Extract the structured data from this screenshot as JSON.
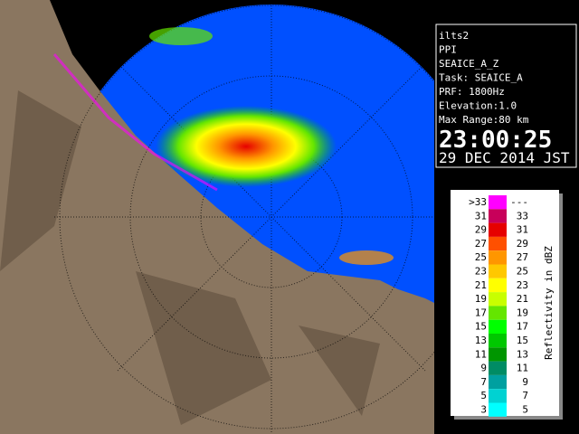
{
  "info": {
    "lines": [
      "ilts2",
      "PPI",
      "SEAICE_A_Z",
      "Task: SEAICE_A",
      "PRF: 1800Hz",
      "Elevation:1.0",
      "Max Range:80 km"
    ],
    "time": "23:00:25",
    "date": "29 DEC 2014 JST"
  },
  "legend": {
    "title": "Reflectivity in dBZ",
    "rows": [
      {
        "low": ">33",
        "high": "---",
        "color": "#ff00ff"
      },
      {
        "low": "31",
        "high": "33",
        "color": "#c8005a"
      },
      {
        "low": "29",
        "high": "31",
        "color": "#e60000"
      },
      {
        "low": "27",
        "high": "29",
        "color": "#ff5000"
      },
      {
        "low": "25",
        "high": "27",
        "color": "#ff9600"
      },
      {
        "low": "23",
        "high": "25",
        "color": "#ffc800"
      },
      {
        "low": "21",
        "high": "23",
        "color": "#ffff00"
      },
      {
        "low": "19",
        "high": "21",
        "color": "#c8ff00"
      },
      {
        "low": "17",
        "high": "19",
        "color": "#64e600"
      },
      {
        "low": "15",
        "high": "17",
        "color": "#00ff00"
      },
      {
        "low": "13",
        "high": "15",
        "color": "#00c800"
      },
      {
        "low": "11",
        "high": "13",
        "color": "#009600"
      },
      {
        "low": "9",
        "high": "11",
        "color": "#008c64"
      },
      {
        "low": "7",
        "high": "9",
        "color": "#00a0a0"
      },
      {
        "low": "5",
        "high": "7",
        "color": "#00d2d2"
      },
      {
        "low": "3",
        "high": "5",
        "color": "#00ffff"
      }
    ]
  }
}
